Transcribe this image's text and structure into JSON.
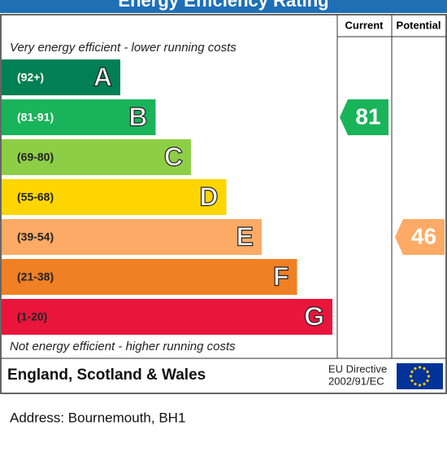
{
  "chart_data": {
    "type": "epc",
    "title": "Energy Efficiency Rating",
    "columns": [
      "Current",
      "Potential"
    ],
    "top_note": "Very energy efficient - lower running costs",
    "bottom_note": "Not energy efficient - higher running costs",
    "bands": [
      {
        "letter": "A",
        "range": "(92+)",
        "color": "#008054"
      },
      {
        "letter": "B",
        "range": "(81-91)",
        "color": "#19b459"
      },
      {
        "letter": "C",
        "range": "(69-80)",
        "color": "#8dce46"
      },
      {
        "letter": "D",
        "range": "(55-68)",
        "color": "#ffd500"
      },
      {
        "letter": "E",
        "range": "(39-54)",
        "color": "#fcaa65"
      },
      {
        "letter": "F",
        "range": "(21-38)",
        "color": "#ef8023"
      },
      {
        "letter": "G",
        "range": "(1-20)",
        "color": "#e9153b"
      }
    ],
    "current": 81,
    "potential": 46,
    "region": "England, Scotland & Wales",
    "directive": [
      "EU Directive",
      "2002/91/EC"
    ]
  },
  "address": "Address: Bournemouth, BH1"
}
